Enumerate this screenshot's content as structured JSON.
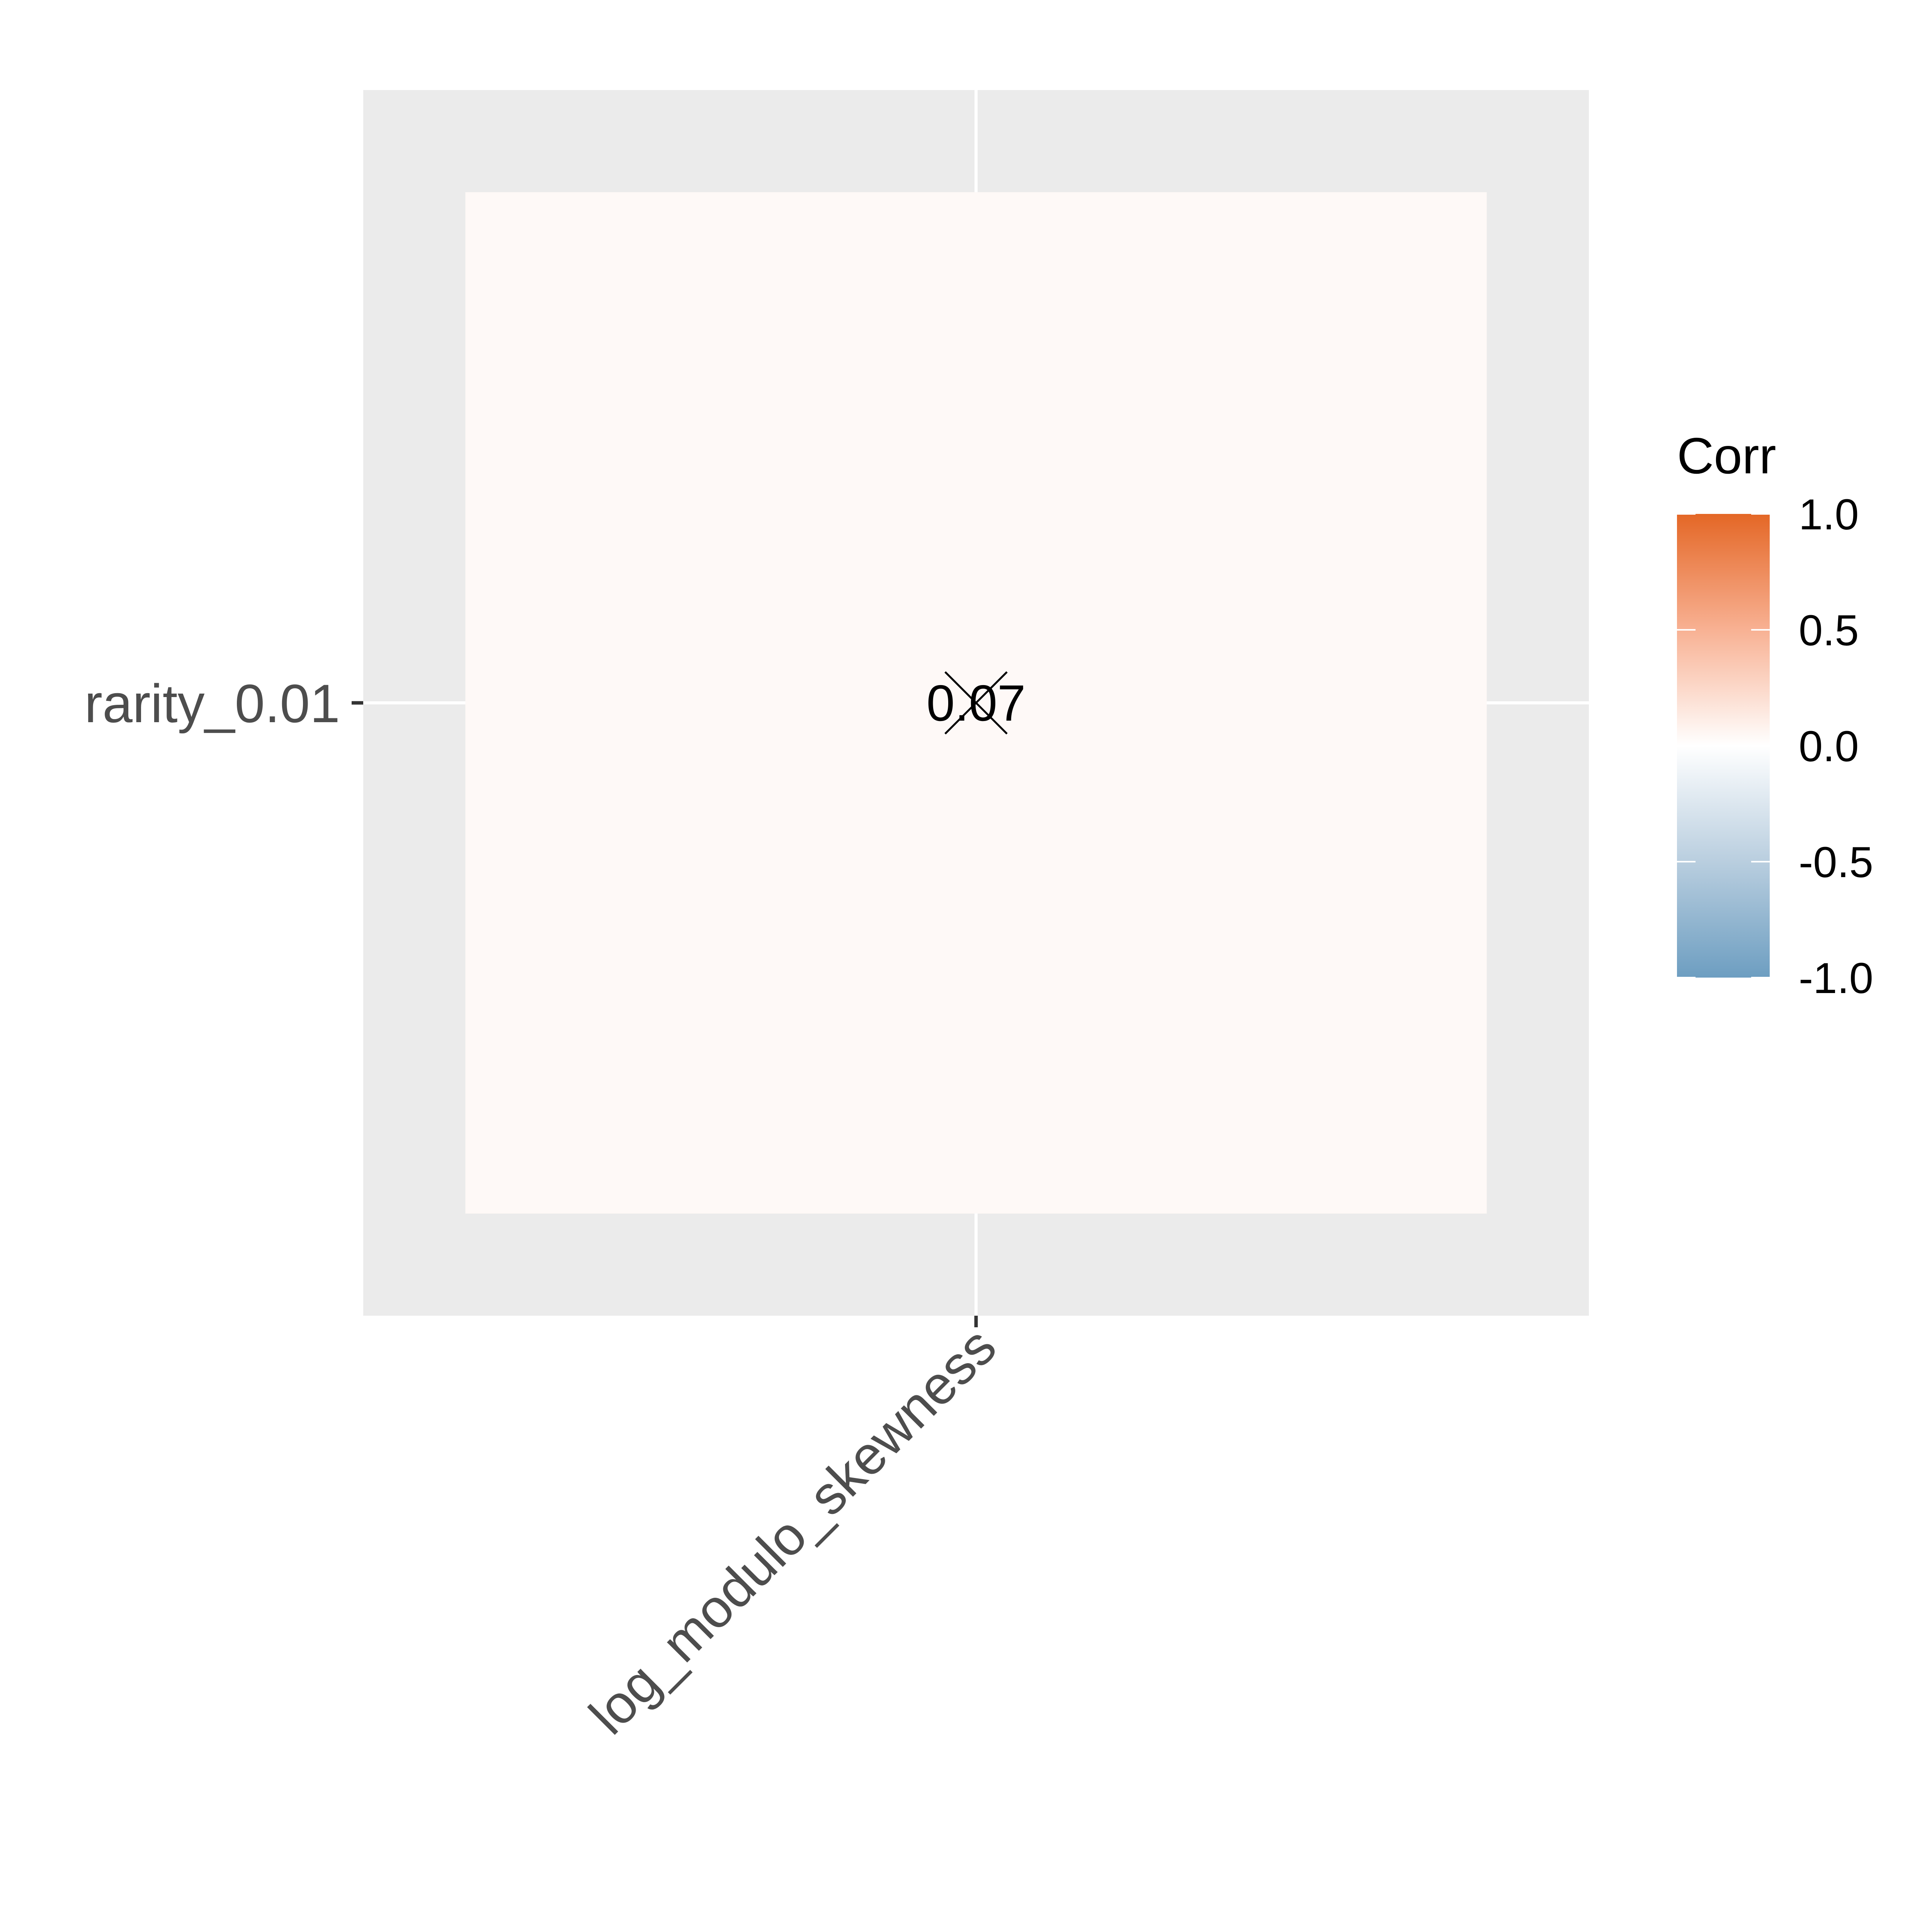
{
  "chart_data": {
    "type": "heatmap",
    "x_categories": [
      "log_modulo_skewness"
    ],
    "y_categories": [
      "rarity_0.01"
    ],
    "cells": [
      {
        "x": "log_modulo_skewness",
        "y": "rarity_0.01",
        "value": 0.07,
        "label": "0.07",
        "insignificant": true
      }
    ],
    "legend": {
      "title": "Corr",
      "ticks": [
        1.0,
        0.5,
        0.0,
        -0.5,
        -1.0
      ],
      "tick_labels": [
        "1.0",
        "0.5",
        "0.0",
        "-0.5",
        "-1.0"
      ],
      "range": [
        -1.0,
        1.0
      ],
      "high_color": "#E46726",
      "mid_color": "#FFFFFF",
      "low_color": "#6D9EC1",
      "placement": "right"
    },
    "panel_background": "#EBEBEB",
    "grid": true
  }
}
